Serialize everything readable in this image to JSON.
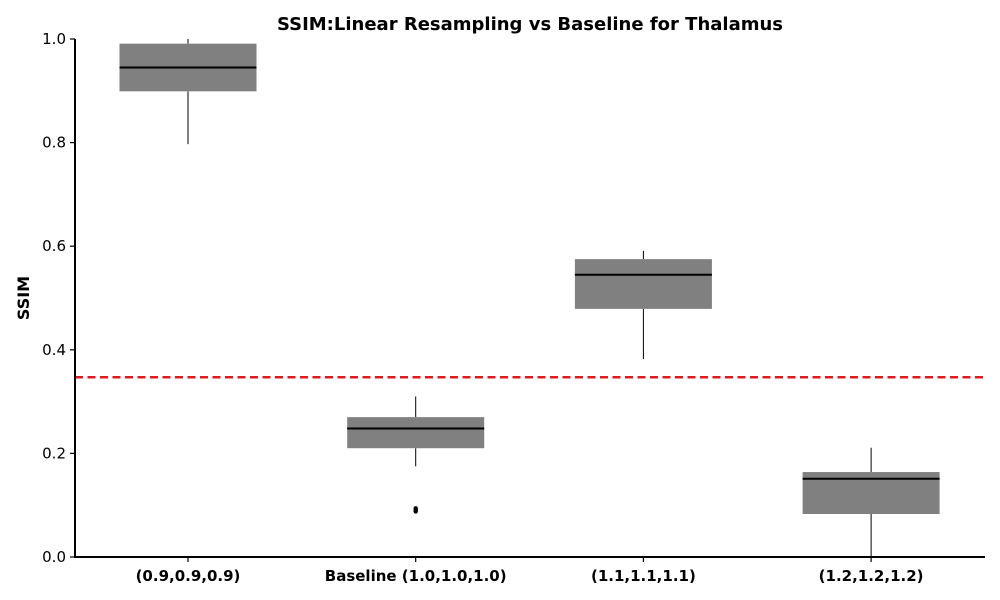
{
  "chart_data": {
    "type": "box",
    "title": "SSIM:Linear Resampling vs Baseline for Thalamus",
    "xlabel": "",
    "ylabel": "SSIM",
    "ylim": [
      0.0,
      1.0
    ],
    "yticks": [
      0.0,
      0.2,
      0.4,
      0.6,
      0.8,
      1.0
    ],
    "ytick_labels": [
      "0.0",
      "0.2",
      "0.4",
      "0.6",
      "0.8",
      "1.0"
    ],
    "grid": false,
    "categories": [
      "(0.9,0.9,0.9)",
      "Baseline (1.0,1.0,1.0)",
      "(1.1,1.1,1.1)",
      "(1.2,1.2,1.2)"
    ],
    "boxes": [
      {
        "whisker_low": 0.797,
        "q1": 0.899,
        "median": 0.945,
        "q3": 0.991,
        "whisker_high": 1.0,
        "outliers": []
      },
      {
        "whisker_low": 0.175,
        "q1": 0.21,
        "median": 0.248,
        "q3": 0.27,
        "whisker_high": 0.31,
        "outliers": [
          0.088,
          0.091,
          0.094
        ]
      },
      {
        "whisker_low": 0.382,
        "q1": 0.479,
        "median": 0.545,
        "q3": 0.575,
        "whisker_high": 0.591,
        "outliers": []
      },
      {
        "whisker_low": 0.0,
        "q1": 0.083,
        "median": 0.151,
        "q3": 0.164,
        "whisker_high": 0.211,
        "outliers": []
      }
    ],
    "reference_line": {
      "y": 0.347,
      "color": "#e31a1c",
      "style": "dashed"
    },
    "box_color": "#808080",
    "median_color": "#000000"
  }
}
